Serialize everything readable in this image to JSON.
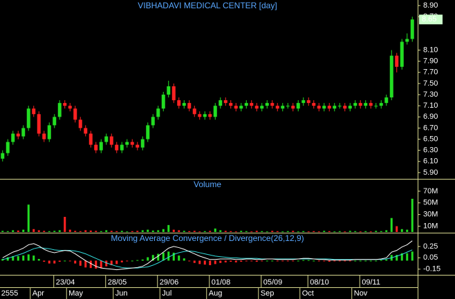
{
  "chart_data": [
    {
      "type": "candlestick",
      "title": "VIBHADAVI MEDICAL CENTER [day]",
      "up_color": "#22dd22",
      "down_color": "#ff2222",
      "categories": [
        null,
        null,
        null,
        null,
        null,
        null,
        null,
        null,
        null,
        null,
        null,
        null,
        "23/04",
        null,
        null,
        null,
        null,
        null,
        null,
        null,
        null,
        null,
        "28/05",
        null,
        null,
        null,
        null,
        null,
        null,
        null,
        null,
        null,
        "29/06",
        null,
        null,
        null,
        null,
        null,
        null,
        null,
        null,
        null,
        "01/08",
        null,
        null,
        null,
        null,
        null,
        null,
        null,
        null,
        null,
        "05/09",
        null,
        null,
        null,
        null,
        null,
        null,
        null,
        null,
        "08/10",
        null,
        null,
        null,
        null,
        null,
        null,
        null,
        null,
        null,
        "09/11",
        null,
        null,
        null,
        null,
        null,
        null,
        null,
        null
      ],
      "months": [
        "2555",
        null,
        null,
        null,
        null,
        null,
        "Apr",
        null,
        null,
        null,
        null,
        null,
        null,
        "May",
        null,
        null,
        null,
        null,
        null,
        null,
        null,
        null,
        "Jun",
        null,
        null,
        null,
        null,
        null,
        null,
        null,
        null,
        "Jul",
        null,
        null,
        null,
        null,
        null,
        null,
        null,
        null,
        "Aug",
        null,
        null,
        null,
        null,
        null,
        null,
        null,
        null,
        null,
        "Sep",
        null,
        null,
        null,
        null,
        null,
        null,
        null,
        "Oct",
        null,
        null,
        null,
        null,
        null,
        null,
        null,
        null,
        null,
        "Nov",
        null,
        null,
        null,
        null,
        null,
        null,
        null,
        null,
        null,
        null,
        null,
        null
      ],
      "open": [
        6.15,
        6.25,
        6.45,
        6.6,
        6.55,
        6.7,
        7.05,
        6.95,
        6.6,
        6.5,
        6.75,
        6.9,
        7.15,
        7.1,
        7.05,
        6.85,
        6.7,
        6.6,
        6.4,
        6.3,
        6.45,
        6.55,
        6.4,
        6.3,
        6.4,
        6.45,
        6.4,
        6.35,
        6.5,
        6.75,
        6.9,
        7.05,
        7.3,
        7.45,
        7.2,
        7.1,
        7.15,
        7.05,
        6.95,
        6.9,
        6.95,
        6.9,
        7.1,
        7.2,
        7.15,
        7.1,
        7.05,
        7.1,
        7.15,
        7.1,
        7.05,
        7.1,
        7.15,
        7.1,
        7.05,
        7.1,
        7.1,
        7.05,
        7.15,
        7.2,
        7.15,
        7.1,
        7.05,
        7.1,
        7.05,
        7.1,
        7.1,
        7.05,
        7.1,
        7.15,
        7.1,
        7.15,
        7.1,
        7.1,
        7.15,
        7.25,
        8.0,
        7.8,
        8.25,
        8.3
      ],
      "high": [
        6.3,
        6.5,
        6.65,
        6.65,
        6.75,
        7.1,
        7.1,
        7.0,
        6.65,
        6.8,
        6.95,
        7.2,
        7.2,
        7.15,
        7.1,
        6.9,
        6.75,
        6.65,
        6.45,
        6.5,
        6.6,
        6.6,
        6.45,
        6.45,
        6.5,
        6.5,
        6.45,
        6.55,
        6.8,
        6.95,
        7.1,
        7.35,
        7.55,
        7.5,
        7.25,
        7.2,
        7.2,
        7.1,
        7.0,
        7.0,
        7.0,
        7.15,
        7.25,
        7.25,
        7.2,
        7.15,
        7.15,
        7.2,
        7.2,
        7.15,
        7.15,
        7.2,
        7.2,
        7.15,
        7.15,
        7.15,
        7.15,
        7.2,
        7.25,
        7.25,
        7.2,
        7.15,
        7.15,
        7.15,
        7.15,
        7.15,
        7.15,
        7.15,
        7.2,
        7.2,
        7.2,
        7.2,
        7.15,
        7.2,
        7.3,
        8.1,
        8.05,
        8.3,
        8.4,
        8.7
      ],
      "low": [
        6.1,
        6.2,
        6.4,
        6.5,
        6.5,
        6.65,
        6.9,
        6.55,
        6.45,
        6.45,
        6.7,
        6.85,
        7.05,
        7.0,
        6.8,
        6.65,
        6.55,
        6.35,
        6.25,
        6.25,
        6.4,
        6.35,
        6.25,
        6.25,
        6.35,
        6.35,
        6.3,
        6.3,
        6.45,
        6.7,
        6.85,
        7.0,
        7.25,
        7.15,
        7.05,
        7.05,
        7.0,
        6.9,
        6.85,
        6.85,
        6.85,
        6.85,
        7.05,
        7.1,
        7.05,
        7.0,
        7.0,
        7.05,
        7.05,
        7.0,
        7.0,
        7.05,
        7.05,
        7.0,
        7.0,
        7.05,
        7.0,
        7.0,
        7.1,
        7.1,
        7.05,
        7.0,
        7.0,
        7.0,
        7.0,
        7.05,
        7.0,
        7.0,
        7.05,
        7.05,
        7.05,
        7.05,
        7.05,
        7.05,
        7.1,
        7.2,
        7.7,
        7.75,
        8.2,
        8.25
      ],
      "close": [
        6.25,
        6.45,
        6.6,
        6.55,
        6.7,
        7.05,
        6.95,
        6.6,
        6.5,
        6.75,
        6.9,
        7.15,
        7.1,
        7.05,
        6.85,
        6.7,
        6.6,
        6.4,
        6.3,
        6.45,
        6.55,
        6.4,
        6.3,
        6.4,
        6.45,
        6.4,
        6.35,
        6.5,
        6.75,
        6.9,
        7.05,
        7.3,
        7.45,
        7.2,
        7.1,
        7.15,
        7.05,
        6.95,
        6.9,
        6.95,
        6.9,
        7.1,
        7.2,
        7.15,
        7.1,
        7.05,
        7.1,
        7.15,
        7.1,
        7.05,
        7.1,
        7.15,
        7.1,
        7.05,
        7.1,
        7.1,
        7.05,
        7.15,
        7.2,
        7.15,
        7.1,
        7.05,
        7.1,
        7.05,
        7.1,
        7.1,
        7.05,
        7.1,
        7.15,
        7.1,
        7.15,
        7.1,
        7.1,
        7.15,
        7.25,
        8.0,
        7.8,
        8.25,
        8.3,
        8.65
      ],
      "ylim": [
        5.8,
        9.0
      ],
      "yticks": [
        {
          "value": 8.9,
          "label": "8.90"
        },
        {
          "value": 8.7,
          "label": "8.70"
        },
        {
          "value": 8.1,
          "label": "8.10"
        },
        {
          "value": 7.9,
          "label": "7.90"
        },
        {
          "value": 7.7,
          "label": "7.70"
        },
        {
          "value": 7.5,
          "label": "7.50"
        },
        {
          "value": 7.3,
          "label": "7.30"
        },
        {
          "value": 7.1,
          "label": "7.10"
        },
        {
          "value": 6.9,
          "label": "6.90"
        },
        {
          "value": 6.7,
          "label": "6.70"
        },
        {
          "value": 6.5,
          "label": "6.50"
        },
        {
          "value": 6.3,
          "label": "6.30"
        },
        {
          "value": 6.1,
          "label": "6.10"
        },
        {
          "value": 5.9,
          "label": "5.90"
        }
      ],
      "last_color": "#ccffcc"
    },
    {
      "type": "bar",
      "title": "Volume",
      "values": [
        2000000,
        1500000,
        3000000,
        2500000,
        4000000,
        47000000,
        5000000,
        3000000,
        2000000,
        1500000,
        2000000,
        3000000,
        26000000,
        4000000,
        2000000,
        1500000,
        3000000,
        2500000,
        2000000,
        1500000,
        3000000,
        2000000,
        1500000,
        2000000,
        1000000,
        1500000,
        2000000,
        3000000,
        4000000,
        2500000,
        3000000,
        5000000,
        12000000,
        4000000,
        3000000,
        2000000,
        1500000,
        2000000,
        1000000,
        1500000,
        2000000,
        6000000,
        3000000,
        2000000,
        1500000,
        1000000,
        2000000,
        1500000,
        1000000,
        2000000,
        1500000,
        1000000,
        2000000,
        1500000,
        1000000,
        1500000,
        2000000,
        1000000,
        1500000,
        1000000,
        1500000,
        1000000,
        2000000,
        1500000,
        1000000,
        1500000,
        1000000,
        2000000,
        1500000,
        1000000,
        1500000,
        1000000,
        2000000,
        1500000,
        3000000,
        24000000,
        10000000,
        5000000,
        4000000,
        57000000
      ],
      "ylim": [
        0,
        90000000
      ],
      "yticks": [
        {
          "value": 70000000,
          "label": "70M"
        },
        {
          "value": 50000000,
          "label": "50M"
        },
        {
          "value": 30000000,
          "label": "30M"
        },
        {
          "value": 10000000,
          "label": "10M"
        }
      ]
    },
    {
      "type": "macd",
      "title": "Moving Average Convergence / Divergence(26,12,9)",
      "macd_color": "#ffffff",
      "signal_color": "#33dddd",
      "macd": [
        0.05,
        0.1,
        0.15,
        0.18,
        0.22,
        0.28,
        0.3,
        0.26,
        0.2,
        0.16,
        0.14,
        0.16,
        0.18,
        0.17,
        0.12,
        0.06,
        0.0,
        -0.05,
        -0.1,
        -0.13,
        -0.14,
        -0.15,
        -0.16,
        -0.15,
        -0.14,
        -0.13,
        -0.12,
        -0.1,
        -0.05,
        0.02,
        0.08,
        0.15,
        0.22,
        0.25,
        0.23,
        0.2,
        0.16,
        0.12,
        0.08,
        0.05,
        0.02,
        0.02,
        0.03,
        0.03,
        0.03,
        0.02,
        0.02,
        0.03,
        0.03,
        0.02,
        0.02,
        0.03,
        0.03,
        0.02,
        0.02,
        0.02,
        0.02,
        0.03,
        0.04,
        0.04,
        0.03,
        0.02,
        0.02,
        0.01,
        0.01,
        0.01,
        0.01,
        0.01,
        0.02,
        0.02,
        0.02,
        0.02,
        0.02,
        0.03,
        0.05,
        0.15,
        0.18,
        0.24,
        0.28,
        0.35
      ],
      "signal": [
        0.02,
        0.04,
        0.07,
        0.1,
        0.13,
        0.17,
        0.21,
        0.23,
        0.22,
        0.21,
        0.19,
        0.18,
        0.18,
        0.18,
        0.17,
        0.15,
        0.12,
        0.08,
        0.04,
        0.0,
        -0.04,
        -0.07,
        -0.1,
        -0.12,
        -0.13,
        -0.13,
        -0.13,
        -0.12,
        -0.11,
        -0.08,
        -0.04,
        0.01,
        0.06,
        0.11,
        0.14,
        0.16,
        0.17,
        0.16,
        0.14,
        0.12,
        0.1,
        0.08,
        0.07,
        0.06,
        0.05,
        0.05,
        0.04,
        0.04,
        0.04,
        0.04,
        0.03,
        0.03,
        0.03,
        0.03,
        0.03,
        0.03,
        0.03,
        0.03,
        0.03,
        0.03,
        0.03,
        0.03,
        0.03,
        0.03,
        0.02,
        0.02,
        0.02,
        0.02,
        0.02,
        0.02,
        0.02,
        0.02,
        0.02,
        0.02,
        0.03,
        0.05,
        0.08,
        0.11,
        0.15,
        0.19
      ],
      "histogram": [
        0.03,
        0.06,
        0.08,
        0.08,
        0.09,
        0.11,
        0.09,
        0.03,
        -0.02,
        -0.05,
        -0.05,
        -0.02,
        0.0,
        -0.01,
        -0.05,
        -0.09,
        -0.12,
        -0.13,
        -0.14,
        -0.13,
        -0.1,
        -0.08,
        -0.06,
        -0.03,
        -0.01,
        0.0,
        0.01,
        0.02,
        0.06,
        0.1,
        0.12,
        0.14,
        0.16,
        0.14,
        0.09,
        0.04,
        -0.01,
        -0.04,
        -0.06,
        -0.07,
        -0.08,
        -0.06,
        -0.04,
        -0.03,
        -0.02,
        -0.03,
        -0.02,
        -0.01,
        -0.01,
        -0.02,
        -0.01,
        0.0,
        0.0,
        -0.01,
        -0.01,
        -0.01,
        -0.01,
        0.0,
        0.01,
        0.01,
        0.0,
        -0.01,
        -0.01,
        -0.02,
        -0.01,
        -0.01,
        -0.01,
        -0.01,
        0.0,
        0.0,
        0.0,
        0.0,
        0.0,
        0.01,
        0.02,
        0.1,
        0.1,
        0.13,
        0.13,
        0.16
      ],
      "ylim": [
        -0.25,
        0.48
      ],
      "yticks": [
        0.25,
        0.05,
        -0.15
      ]
    }
  ]
}
